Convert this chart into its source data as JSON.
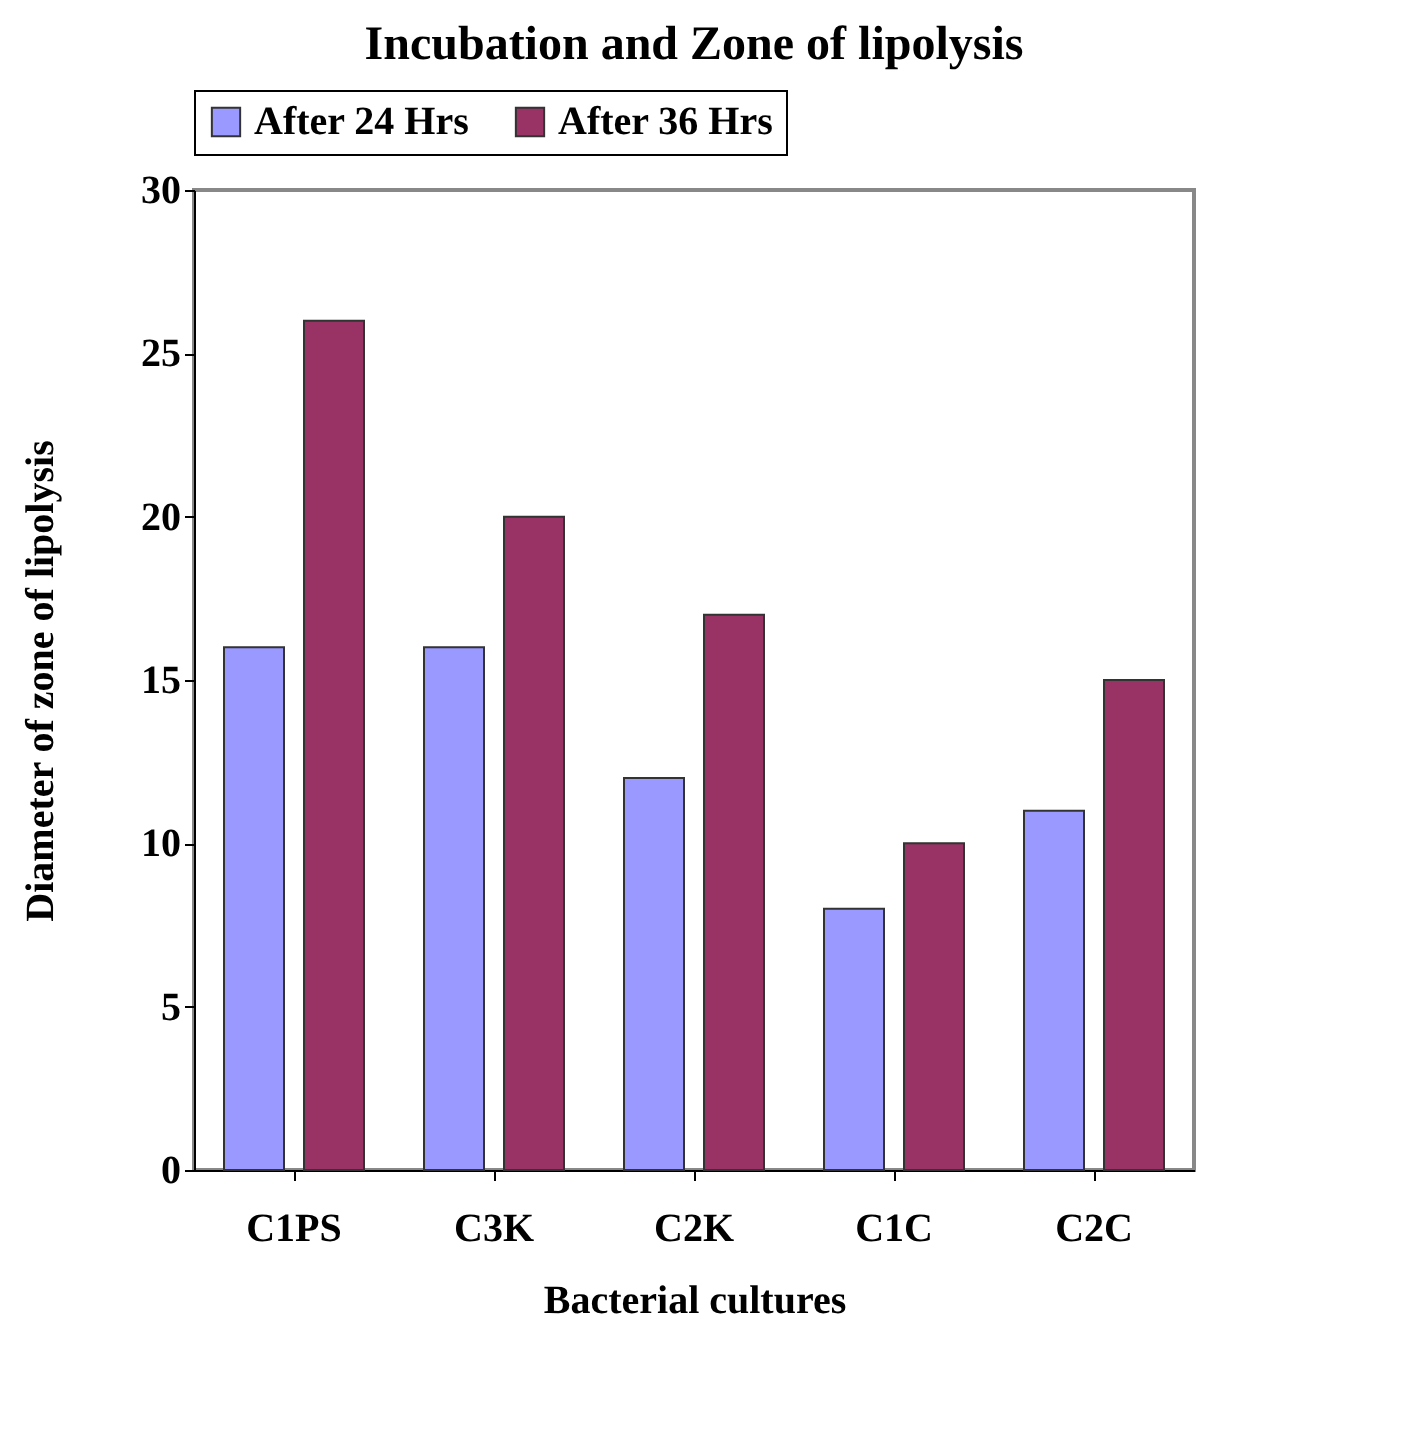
{
  "chart_data": {
    "type": "bar",
    "title": "Incubation and Zone of lipolysis",
    "xlabel": "Bacterial cultures",
    "ylabel": "Diameter of zone of lipolysis",
    "categories": [
      "C1PS",
      "C3K",
      "C2K",
      "C1C",
      "C2C"
    ],
    "series": [
      {
        "name": "After 24 Hrs",
        "color": "#9999ff",
        "values": [
          16,
          16,
          12,
          8,
          11
        ]
      },
      {
        "name": "After 36 Hrs",
        "color": "#993366",
        "values": [
          26,
          20,
          17,
          10,
          15
        ]
      }
    ],
    "ylim": [
      0,
      30
    ],
    "yticks": [
      0,
      5,
      10,
      15,
      20,
      25,
      30
    ],
    "grid": false,
    "legend": "top"
  }
}
